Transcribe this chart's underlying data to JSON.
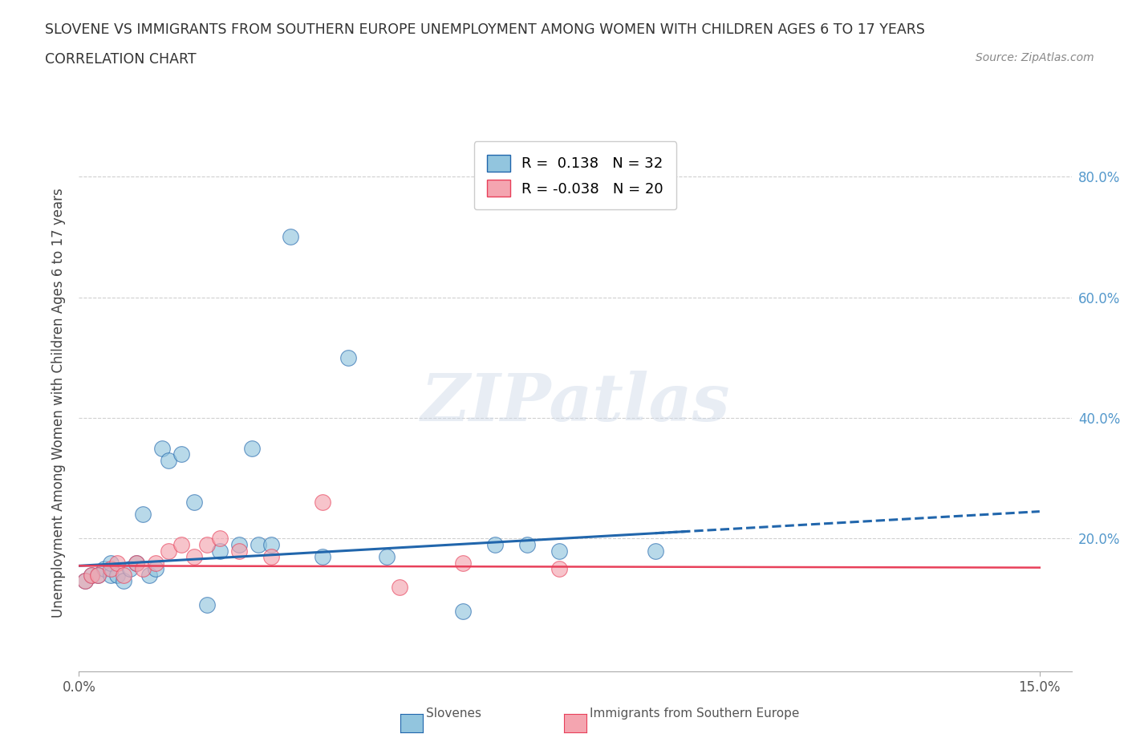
{
  "title_line1": "SLOVENE VS IMMIGRANTS FROM SOUTHERN EUROPE UNEMPLOYMENT AMONG WOMEN WITH CHILDREN AGES 6 TO 17 YEARS",
  "title_line2": "CORRELATION CHART",
  "source_text": "Source: ZipAtlas.com",
  "ylabel": "Unemployment Among Women with Children Ages 6 to 17 years",
  "xlim": [
    0.0,
    0.155
  ],
  "ylim": [
    -0.02,
    0.87
  ],
  "color_slovene": "#92c5de",
  "color_immigrant": "#f4a5b0",
  "color_line_slovene": "#2166ac",
  "color_line_immigrant": "#e8405a",
  "slovene_x": [
    0.001,
    0.002,
    0.003,
    0.004,
    0.005,
    0.005,
    0.006,
    0.007,
    0.008,
    0.009,
    0.01,
    0.011,
    0.012,
    0.013,
    0.014,
    0.016,
    0.018,
    0.02,
    0.022,
    0.025,
    0.027,
    0.028,
    0.03,
    0.033,
    0.038,
    0.042,
    0.048,
    0.06,
    0.065,
    0.07,
    0.075,
    0.09
  ],
  "slovene_y": [
    0.13,
    0.14,
    0.14,
    0.15,
    0.14,
    0.16,
    0.14,
    0.13,
    0.15,
    0.16,
    0.24,
    0.14,
    0.15,
    0.35,
    0.33,
    0.34,
    0.26,
    0.09,
    0.18,
    0.19,
    0.35,
    0.19,
    0.19,
    0.7,
    0.17,
    0.5,
    0.17,
    0.08,
    0.19,
    0.19,
    0.18,
    0.18
  ],
  "immigrant_x": [
    0.001,
    0.002,
    0.003,
    0.005,
    0.006,
    0.007,
    0.009,
    0.01,
    0.012,
    0.014,
    0.016,
    0.018,
    0.02,
    0.022,
    0.025,
    0.03,
    0.038,
    0.05,
    0.06,
    0.075
  ],
  "immigrant_y": [
    0.13,
    0.14,
    0.14,
    0.15,
    0.16,
    0.14,
    0.16,
    0.15,
    0.16,
    0.18,
    0.19,
    0.17,
    0.19,
    0.2,
    0.18,
    0.17,
    0.26,
    0.12,
    0.16,
    0.15
  ],
  "slope_slovene": 0.6,
  "intercept_slovene": 0.155,
  "slope_immigrant": -0.02,
  "intercept_immigrant": 0.155,
  "line_solid_end": 0.095,
  "line_dash_start": 0.09,
  "line_end": 0.15,
  "watermark": "ZIPatlas",
  "background_color": "#ffffff",
  "grid_color": "#d0d0d0",
  "ytick_values": [
    0.2,
    0.4,
    0.6,
    0.8
  ],
  "ytick_labels": [
    "20.0%",
    "40.0%",
    "60.0%",
    "80.0%"
  ],
  "ytick_color": "#5599cc",
  "xtick_values": [
    0.0,
    0.15
  ],
  "xtick_labels": [
    "0.0%",
    "15.0%"
  ]
}
